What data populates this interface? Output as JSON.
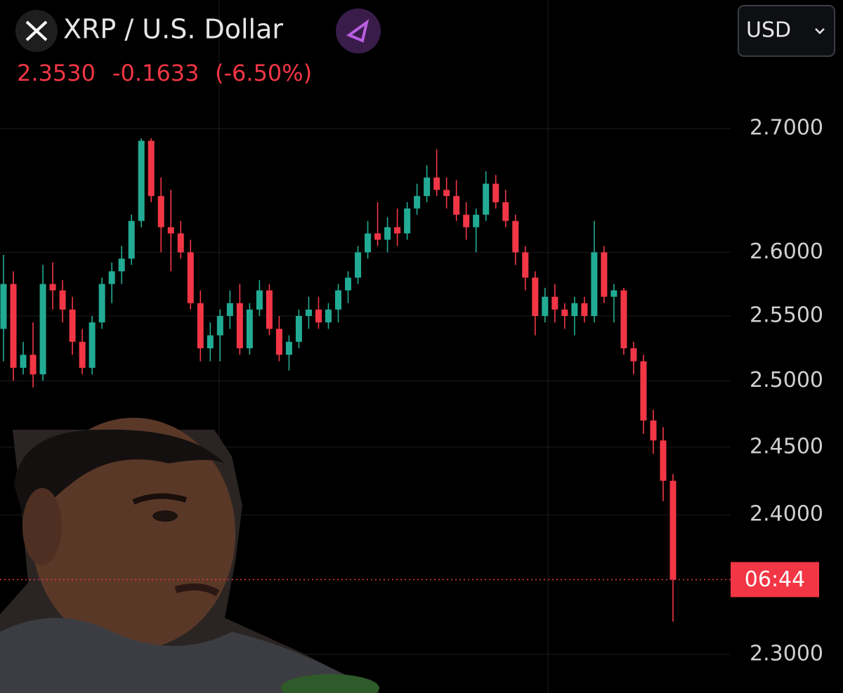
{
  "header": {
    "title": "XRP / U.S. Dollar",
    "price": "2.3530",
    "change": "-0.1633",
    "change_pct": "(-6.50%)",
    "currency": "USD"
  },
  "chart_data": {
    "type": "candlestick",
    "log": true,
    "grid": true,
    "up_color": "#22ab94",
    "down_color": "#f23645",
    "ylim": [
      2.273,
      2.808
    ],
    "yticks": [
      {
        "value": 2.7,
        "label": "2.7000"
      },
      {
        "value": 2.6,
        "label": "2.6000"
      },
      {
        "value": 2.55,
        "label": "2.5500"
      },
      {
        "value": 2.5,
        "label": "2.5000"
      },
      {
        "value": 2.45,
        "label": "2.4500"
      },
      {
        "value": 2.4,
        "label": "2.4000"
      },
      {
        "value": 2.3,
        "label": "2.3000"
      }
    ],
    "price_line": {
      "value": 2.353,
      "label": "06:44"
    },
    "open": [
      2.54,
      2.575,
      2.51,
      2.52,
      2.505,
      2.575,
      2.57,
      2.555,
      2.53,
      2.51,
      2.545,
      2.575,
      2.585,
      2.595,
      2.625,
      2.69,
      2.645,
      2.62,
      2.615,
      2.6,
      2.56,
      2.525,
      2.535,
      2.55,
      2.56,
      2.525,
      2.555,
      2.57,
      2.54,
      2.52,
      2.53,
      2.55,
      2.555,
      2.545,
      2.555,
      2.57,
      2.58,
      2.6,
      2.615,
      2.61,
      2.62,
      2.615,
      2.635,
      2.645,
      2.66,
      2.65,
      2.645,
      2.63,
      2.62,
      2.63,
      2.655,
      2.64,
      2.625,
      2.6,
      2.58,
      2.55,
      2.565,
      2.555,
      2.55,
      2.56,
      2.55,
      2.6,
      2.565,
      2.57,
      2.525,
      2.515,
      2.47,
      2.455,
      2.425
    ],
    "high": [
      2.598,
      2.585,
      2.53,
      2.545,
      2.59,
      2.592,
      2.578,
      2.565,
      2.54,
      2.55,
      2.58,
      2.592,
      2.605,
      2.63,
      2.692,
      2.692,
      2.66,
      2.65,
      2.625,
      2.61,
      2.57,
      2.545,
      2.555,
      2.57,
      2.575,
      2.56,
      2.578,
      2.575,
      2.55,
      2.535,
      2.555,
      2.565,
      2.565,
      2.56,
      2.575,
      2.585,
      2.605,
      2.625,
      2.64,
      2.628,
      2.635,
      2.64,
      2.655,
      2.67,
      2.683,
      2.66,
      2.658,
      2.64,
      2.635,
      2.665,
      2.662,
      2.65,
      2.63,
      2.605,
      2.585,
      2.572,
      2.575,
      2.56,
      2.565,
      2.565,
      2.625,
      2.605,
      2.575,
      2.572,
      2.53,
      2.52,
      2.478,
      2.465,
      2.43
    ],
    "low": [
      2.515,
      2.5,
      2.505,
      2.495,
      2.5,
      2.555,
      2.545,
      2.52,
      2.505,
      2.505,
      2.54,
      2.56,
      2.575,
      2.59,
      2.62,
      2.64,
      2.6,
      2.585,
      2.595,
      2.555,
      2.515,
      2.515,
      2.515,
      2.54,
      2.52,
      2.52,
      2.55,
      2.535,
      2.515,
      2.508,
      2.525,
      2.54,
      2.54,
      2.54,
      2.545,
      2.56,
      2.575,
      2.595,
      2.605,
      2.6,
      2.605,
      2.61,
      2.63,
      2.64,
      2.645,
      2.635,
      2.625,
      2.61,
      2.6,
      2.625,
      2.635,
      2.62,
      2.59,
      2.57,
      2.535,
      2.545,
      2.545,
      2.54,
      2.535,
      2.545,
      2.545,
      2.56,
      2.545,
      2.52,
      2.505,
      2.46,
      2.445,
      2.41,
      2.323
    ],
    "close": [
      2.575,
      2.51,
      2.52,
      2.505,
      2.575,
      2.57,
      2.555,
      2.53,
      2.51,
      2.545,
      2.575,
      2.585,
      2.595,
      2.625,
      2.69,
      2.645,
      2.62,
      2.615,
      2.6,
      2.56,
      2.525,
      2.535,
      2.55,
      2.56,
      2.525,
      2.555,
      2.57,
      2.54,
      2.52,
      2.53,
      2.55,
      2.555,
      2.545,
      2.555,
      2.57,
      2.58,
      2.6,
      2.615,
      2.61,
      2.62,
      2.615,
      2.635,
      2.645,
      2.66,
      2.65,
      2.645,
      2.63,
      2.62,
      2.63,
      2.655,
      2.64,
      2.625,
      2.6,
      2.58,
      2.55,
      2.565,
      2.555,
      2.55,
      2.56,
      2.55,
      2.6,
      2.565,
      2.57,
      2.525,
      2.515,
      2.47,
      2.455,
      2.425,
      2.353
    ]
  }
}
